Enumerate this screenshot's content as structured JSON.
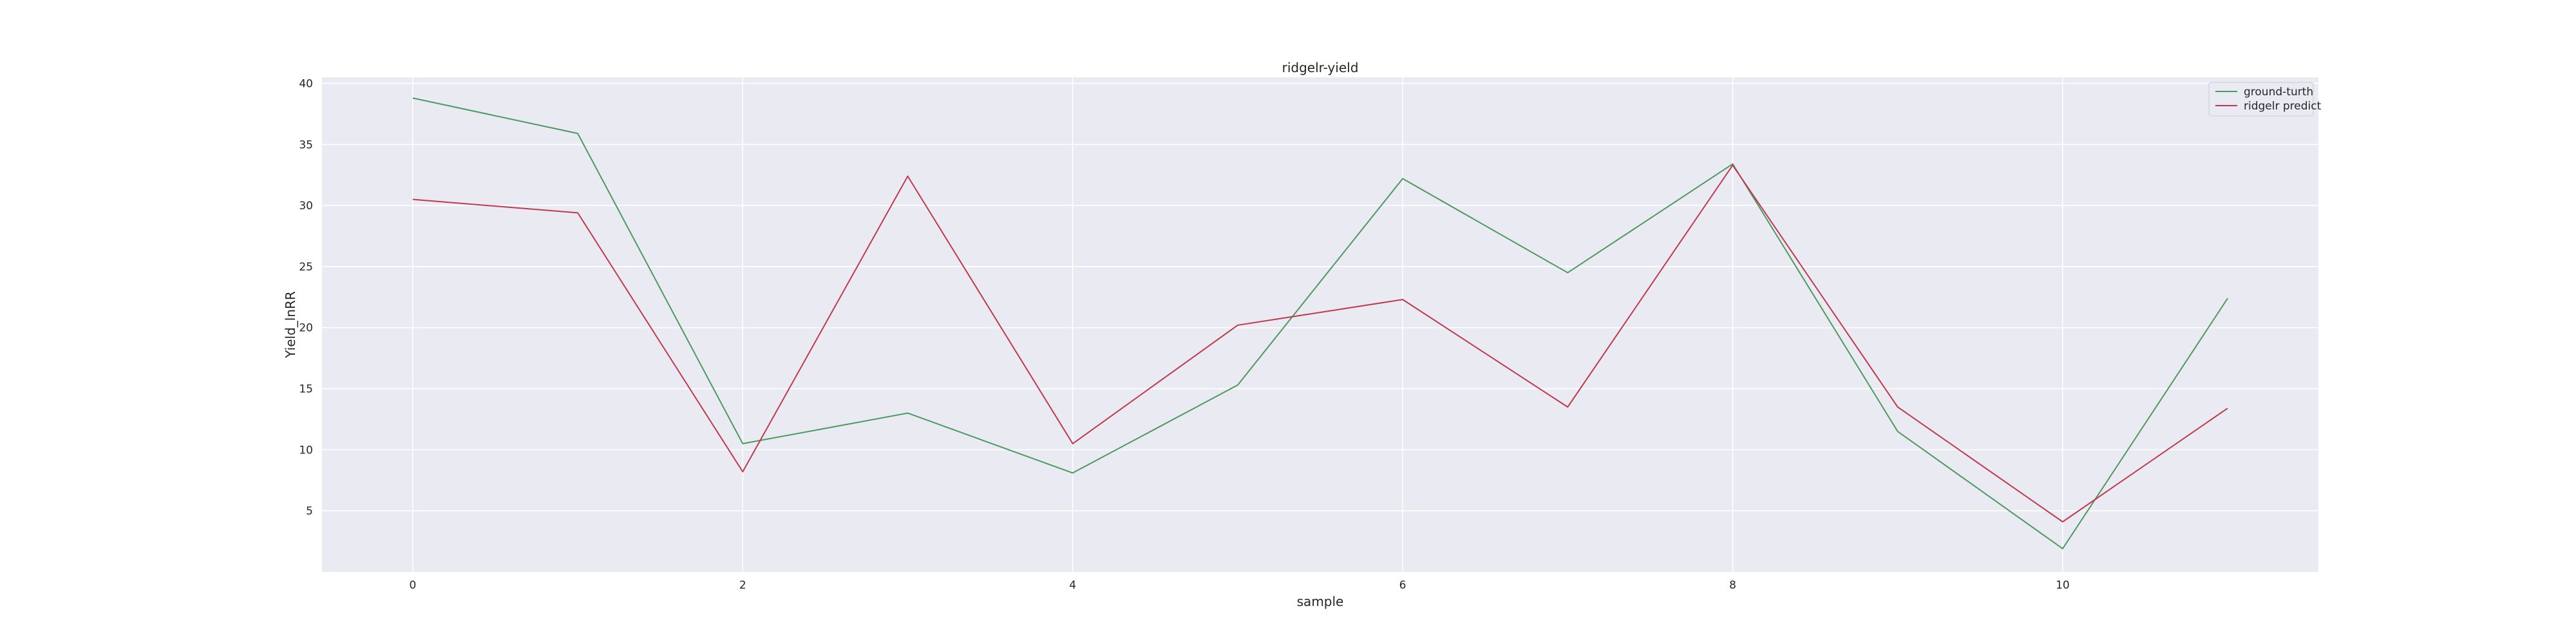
{
  "chart_data": {
    "type": "line",
    "title": "ridgelr-yield",
    "xlabel": "sample",
    "ylabel": "Yield_lnRR",
    "x": [
      0,
      1,
      2,
      3,
      4,
      5,
      6,
      7,
      8,
      9,
      10,
      11
    ],
    "xlim": [
      -0.55,
      11.55
    ],
    "ylim": [
      0,
      40.5
    ],
    "xticks": [
      0,
      2,
      4,
      6,
      8,
      10
    ],
    "yticks": [
      5,
      10,
      15,
      20,
      25,
      30,
      35,
      40
    ],
    "grid": true,
    "legend_position": "top-right",
    "series": [
      {
        "name": "ground-turth",
        "color": "#4c9a5f",
        "values": [
          38.8,
          35.9,
          10.5,
          13.0,
          8.1,
          15.3,
          32.2,
          24.5,
          33.4,
          11.5,
          1.9,
          22.4
        ]
      },
      {
        "name": "ridgelr predict",
        "color": "#c0394e",
        "values": [
          30.5,
          29.4,
          8.2,
          32.4,
          10.5,
          20.2,
          22.3,
          13.5,
          33.3,
          13.5,
          4.1,
          13.4
        ]
      }
    ]
  }
}
